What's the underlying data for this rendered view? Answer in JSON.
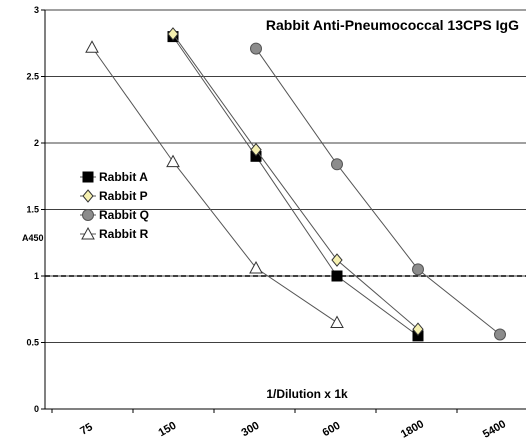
{
  "chart_data": {
    "type": "line",
    "title": "Rabbit Anti-Pneumococcal 13CPS IgG",
    "xlabel": "1/Dilution x 1k",
    "ylabel": "A450",
    "x_scale": "log",
    "categories": [
      "75",
      "150",
      "300",
      "600",
      "1800",
      "5400"
    ],
    "ylim": [
      0,
      3
    ],
    "yticks": [
      "0",
      "0.5",
      "1",
      "1.5",
      "2",
      "2.5",
      "3"
    ],
    "reference_line": {
      "y": 1.0,
      "style": "dashed"
    },
    "grid": "horizontal",
    "legend_position": "left",
    "series": [
      {
        "name": "Rabbit A",
        "marker": "square-filled",
        "color": "#000000",
        "x": [
          150,
          300,
          600,
          1800
        ],
        "values": [
          2.8,
          1.9,
          1.0,
          0.55
        ]
      },
      {
        "name": "Rabbit P",
        "marker": "diamond-open",
        "color": "#f5f0b0",
        "x": [
          150,
          300,
          600,
          1800
        ],
        "values": [
          2.82,
          1.95,
          1.12,
          0.6
        ]
      },
      {
        "name": "Rabbit Q",
        "marker": "circle-filled",
        "color": "#8c8c8c",
        "x": [
          300,
          600,
          1800,
          5400
        ],
        "values": [
          2.71,
          1.84,
          1.05,
          0.56
        ]
      },
      {
        "name": "Rabbit R",
        "marker": "triangle-open",
        "color": "#ffffff",
        "x": [
          75,
          150,
          300,
          600
        ],
        "values": [
          2.72,
          1.86,
          1.06,
          0.65
        ]
      }
    ]
  }
}
